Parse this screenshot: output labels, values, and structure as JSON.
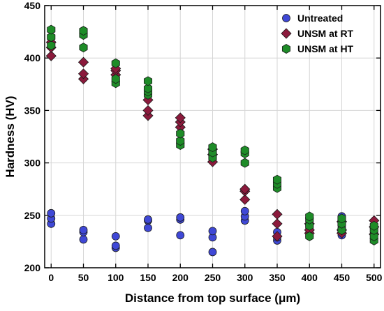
{
  "chart_data": {
    "type": "scatter",
    "xlabel": "Distance from top surface (μm)",
    "ylabel": "Hardness (HV)",
    "xlim": [
      -10,
      510
    ],
    "ylim": [
      200,
      450
    ],
    "xticks": [
      0,
      50,
      100,
      150,
      200,
      250,
      300,
      350,
      400,
      450,
      500
    ],
    "yticks": [
      200,
      250,
      300,
      350,
      400,
      450
    ],
    "grid": true,
    "legend_position": "top-right",
    "series": [
      {
        "name": "Untreated",
        "marker": "circle",
        "color": "#3f48d6",
        "points": [
          [
            0,
            242
          ],
          [
            0,
            247
          ],
          [
            0,
            252
          ],
          [
            50,
            227
          ],
          [
            50,
            234
          ],
          [
            50,
            236
          ],
          [
            100,
            219
          ],
          [
            100,
            221
          ],
          [
            100,
            230
          ],
          [
            150,
            238
          ],
          [
            150,
            245
          ],
          [
            150,
            246
          ],
          [
            200,
            231
          ],
          [
            200,
            246
          ],
          [
            200,
            248
          ],
          [
            250,
            215
          ],
          [
            250,
            229
          ],
          [
            250,
            235
          ],
          [
            300,
            245
          ],
          [
            300,
            249
          ],
          [
            300,
            254
          ],
          [
            350,
            226
          ],
          [
            350,
            229
          ],
          [
            350,
            234
          ],
          [
            400,
            230
          ],
          [
            400,
            237
          ],
          [
            400,
            240
          ],
          [
            450,
            231
          ],
          [
            450,
            240
          ],
          [
            450,
            249
          ],
          [
            500,
            228
          ],
          [
            500,
            234
          ],
          [
            500,
            238
          ]
        ]
      },
      {
        "name": "UNSM at RT",
        "marker": "diamond",
        "color": "#8b1a3c",
        "points": [
          [
            0,
            402
          ],
          [
            0,
            410
          ],
          [
            0,
            415
          ],
          [
            50,
            380
          ],
          [
            50,
            385
          ],
          [
            50,
            396
          ],
          [
            100,
            384
          ],
          [
            100,
            388
          ],
          [
            100,
            390
          ],
          [
            150,
            345
          ],
          [
            150,
            350
          ],
          [
            150,
            360
          ],
          [
            200,
            334
          ],
          [
            200,
            339
          ],
          [
            200,
            343
          ],
          [
            250,
            301
          ],
          [
            250,
            308
          ],
          [
            250,
            313
          ],
          [
            300,
            265
          ],
          [
            300,
            273
          ],
          [
            300,
            275
          ],
          [
            350,
            230
          ],
          [
            350,
            242
          ],
          [
            350,
            251
          ],
          [
            400,
            233
          ],
          [
            400,
            236
          ],
          [
            400,
            242
          ],
          [
            450,
            233
          ],
          [
            450,
            236
          ],
          [
            450,
            244
          ],
          [
            500,
            232
          ],
          [
            500,
            239
          ],
          [
            500,
            245
          ]
        ]
      },
      {
        "name": "UNSM at HT",
        "marker": "hexagon",
        "color": "#1e8c28",
        "points": [
          [
            0,
            412
          ],
          [
            0,
            420
          ],
          [
            0,
            427
          ],
          [
            50,
            410
          ],
          [
            50,
            422
          ],
          [
            50,
            426
          ],
          [
            100,
            376
          ],
          [
            100,
            380
          ],
          [
            100,
            395
          ],
          [
            150,
            365
          ],
          [
            150,
            368
          ],
          [
            150,
            371
          ],
          [
            150,
            378
          ],
          [
            200,
            317
          ],
          [
            200,
            321
          ],
          [
            200,
            328
          ],
          [
            250,
            305
          ],
          [
            250,
            310
          ],
          [
            250,
            315
          ],
          [
            300,
            300
          ],
          [
            300,
            309
          ],
          [
            300,
            312
          ],
          [
            350,
            276
          ],
          [
            350,
            280
          ],
          [
            350,
            284
          ],
          [
            400,
            230
          ],
          [
            400,
            240
          ],
          [
            400,
            246
          ],
          [
            400,
            249
          ],
          [
            450,
            236
          ],
          [
            450,
            242
          ],
          [
            450,
            247
          ],
          [
            500,
            226
          ],
          [
            500,
            230
          ],
          [
            500,
            236
          ],
          [
            500,
            240
          ]
        ]
      }
    ]
  }
}
